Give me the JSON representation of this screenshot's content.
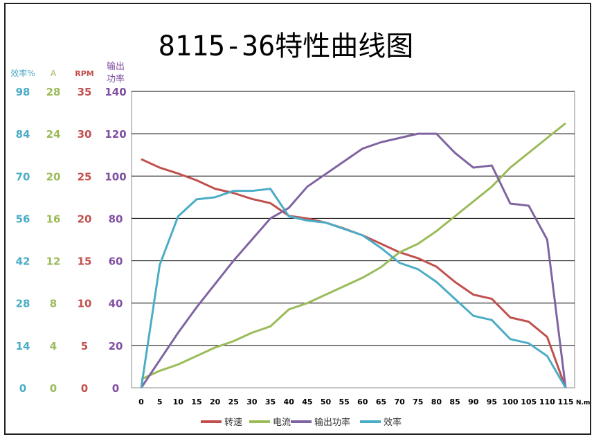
{
  "chart_data": {
    "type": "line",
    "title": "8115-36特性曲线图",
    "xlabel": "N.m",
    "x": [
      0,
      5,
      10,
      15,
      20,
      25,
      30,
      35,
      40,
      45,
      50,
      55,
      60,
      65,
      70,
      75,
      80,
      85,
      90,
      95,
      100,
      105,
      110,
      115
    ],
    "axes": [
      {
        "id": "eff",
        "label": "效率%",
        "max": 98,
        "ticks": [
          0,
          14,
          28,
          42,
          56,
          70,
          84,
          98
        ],
        "color": "#4bacc6"
      },
      {
        "id": "amp",
        "label": "A",
        "max": 28,
        "ticks": [
          0,
          4,
          8,
          12,
          16,
          20,
          24,
          28
        ],
        "color": "#9bbb59"
      },
      {
        "id": "rpm",
        "label": "RPM",
        "max": 35,
        "ticks": [
          0,
          5,
          10,
          15,
          20,
          25,
          30,
          35
        ],
        "color": "#c0504d"
      },
      {
        "id": "pow",
        "label": "输出功率",
        "max": 140,
        "ticks": [
          0,
          20,
          40,
          60,
          80,
          100,
          120,
          140
        ],
        "color": "#7f4fa0"
      }
    ],
    "ylim": [
      0,
      140
    ],
    "grid": true,
    "legend_position": "bottom",
    "series": [
      {
        "name": "转速",
        "axis": "rpm",
        "color": "#c0504d",
        "values": [
          27,
          26,
          25.3,
          24.5,
          23.5,
          23,
          22.3,
          21.8,
          20.3,
          20,
          19.5,
          18.8,
          18,
          17,
          16,
          15.3,
          14.3,
          12.5,
          11,
          10.5,
          8.3,
          7.8,
          6,
          0
        ]
      },
      {
        "name": "电流",
        "axis": "amp",
        "color": "#9bbb59",
        "values": [
          0.8,
          1.6,
          2.2,
          3,
          3.8,
          4.4,
          5.2,
          5.8,
          7.4,
          8,
          8.8,
          9.6,
          10.4,
          11.4,
          12.8,
          13.6,
          14.8,
          16.2,
          17.6,
          19,
          20.8,
          22.2,
          23.6,
          25
        ]
      },
      {
        "name": "输出功率",
        "axis": "pow",
        "color": "#8064a2",
        "values": [
          0,
          13,
          26,
          38,
          49,
          60,
          70,
          80,
          85,
          95,
          101,
          107,
          113,
          116,
          118,
          120,
          120,
          111,
          104,
          105,
          87,
          86,
          70,
          0
        ]
      },
      {
        "name": "效率",
        "axis": "eff",
        "color": "#4bacc6",
        "values": [
          0,
          40.6,
          56.7,
          62.3,
          63,
          65.1,
          65.1,
          65.8,
          56.7,
          55.3,
          54.6,
          52.5,
          50.4,
          46.2,
          41.3,
          39.2,
          35,
          29.4,
          23.8,
          22.4,
          16.1,
          14.7,
          10.5,
          0
        ]
      }
    ]
  }
}
